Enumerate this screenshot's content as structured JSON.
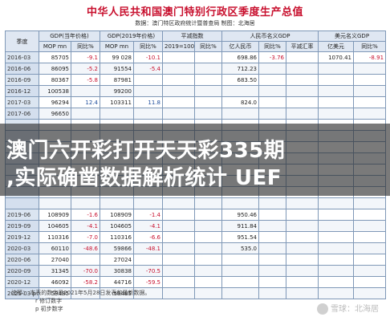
{
  "header": {
    "title": "中华人民共和国澳门特别行政区季度生产总值",
    "subtitle": "数据：澳门特区政府统计暨普查局  制图：北海居"
  },
  "table": {
    "group_headers": [
      "季度",
      "GDP(当年价格)",
      "GDP(2019年价格)",
      "平减指数",
      "人民币名义GDP",
      "美元名义GDP"
    ],
    "sub_headers": [
      "MOP mn",
      "同比%",
      "MOP mn",
      "同比%",
      "2019=100",
      "同比%",
      "亿人民币",
      "同比%",
      "平减汇率",
      "亿美元",
      "同比%"
    ],
    "rows": [
      {
        "q": "2016-03",
        "c": [
          "85705",
          "-9.1",
          "99 028",
          "-10.1",
          "",
          "",
          "698.86",
          "-3.76",
          "",
          "1070.41",
          "-8.91"
        ]
      },
      {
        "q": "2016-06",
        "c": [
          "86095",
          "-5.2",
          "91554",
          "-5.4",
          "",
          "",
          "712.23",
          "",
          "",
          "",
          ""
        ]
      },
      {
        "q": "2016-09",
        "c": [
          "80367",
          "-5.8",
          "87981",
          "",
          "",
          "",
          "683.50",
          "",
          "",
          "",
          ""
        ]
      },
      {
        "q": "2016-12",
        "c": [
          "100538",
          "",
          "99200",
          "",
          "",
          "",
          "",
          "",
          "",
          "",
          ""
        ]
      },
      {
        "q": "2017-03",
        "c": [
          "96294",
          "12.4",
          "103311",
          "11.8",
          "",
          "",
          "824.0",
          "",
          "",
          "",
          ""
        ]
      },
      {
        "q": "2017-06",
        "c": [
          "96650",
          "",
          "",
          "",
          "",
          "",
          "",
          "",
          "",
          "",
          ""
        ]
      },
      {
        "q": "",
        "c": [
          "",
          "",
          "",
          "",
          "",
          "",
          "",
          "",
          "",
          "",
          ""
        ]
      },
      {
        "q": "",
        "c": [
          "",
          "",
          "",
          "",
          "",
          "",
          "",
          "",
          "",
          "",
          ""
        ]
      },
      {
        "q": "",
        "c": [
          "",
          "",
          "",
          "",
          "",
          "",
          "",
          "",
          "",
          "",
          ""
        ]
      },
      {
        "q": "",
        "c": [
          "",
          "",
          "",
          "",
          "",
          "",
          "",
          "",
          "",
          "",
          ""
        ]
      },
      {
        "q": "",
        "c": [
          "",
          "",
          "",
          "",
          "",
          "",
          "",
          "",
          "",
          "",
          ""
        ]
      },
      {
        "q": "",
        "c": [
          "",
          "",
          "",
          "",
          "",
          "",
          "",
          "",
          "",
          "",
          ""
        ]
      },
      {
        "q": "",
        "c": [
          "",
          "",
          "",
          "",
          "",
          "",
          "",
          "",
          "",
          "",
          ""
        ]
      },
      {
        "q": "",
        "c": [
          "",
          "",
          "",
          "",
          "",
          "",
          "",
          "",
          "",
          "",
          ""
        ]
      },
      {
        "q": "2019-06",
        "c": [
          "108909",
          "-1.6",
          "108909",
          "-1.4",
          "",
          "",
          "950.46",
          "",
          "",
          "",
          ""
        ]
      },
      {
        "q": "2019-09",
        "c": [
          "104605",
          "-4.1",
          "104605",
          "-4.1",
          "",
          "",
          "911.84",
          "",
          "",
          "",
          ""
        ]
      },
      {
        "q": "2019-12",
        "c": [
          "110316",
          "-7.0",
          "110316",
          "-6.6",
          "",
          "",
          "951.54",
          "",
          "",
          "",
          ""
        ]
      },
      {
        "q": "2020-03",
        "c": [
          "60110",
          "-48.6",
          "59866",
          "-48.1",
          "",
          "",
          "535.0",
          "",
          "",
          "",
          ""
        ]
      },
      {
        "q": "2020-06",
        "c": [
          "27040",
          "",
          "27024",
          "",
          "",
          "",
          "",
          "",
          "",
          "",
          ""
        ]
      },
      {
        "q": "2020-09",
        "c": [
          "31345",
          "-70.0",
          "30838",
          "-70.5",
          "",
          "",
          "",
          "",
          "",
          "",
          ""
        ]
      },
      {
        "q": "2020-12",
        "c": [
          "46092",
          "-58.2",
          "44716",
          "-59.5",
          "",
          "",
          "",
          "",
          "",
          "",
          ""
        ]
      },
      {
        "q": "2021-03 p",
        "c": [
          "59485",
          "",
          "59485",
          "",
          "",
          "",
          "",
          "",
          "",
          "",
          ""
        ]
      }
    ]
  },
  "banner": {
    "line1": "澳门六开彩打开天天彩335期",
    "line2": ",实际确凿数据解析统计 UEF"
  },
  "notes": {
    "line1": "注释：  本表的数字是2021年5月28日发表的最新数据。",
    "line2": "r  修订数字",
    "line3": "p  初步数字"
  },
  "watermark": {
    "text": "雪球：北海居"
  },
  "colors": {
    "title": "#c8102e",
    "negative": "#c8102e",
    "positive": "#1f4e9c",
    "header_bg": "#dfe7f2",
    "border": "#7f98b7"
  }
}
